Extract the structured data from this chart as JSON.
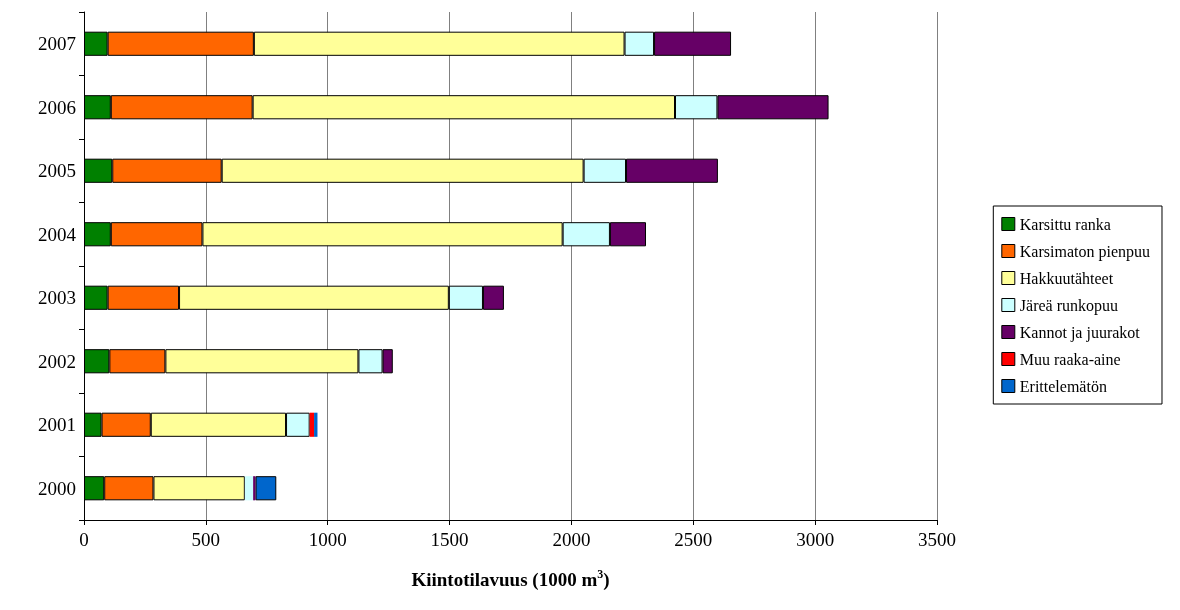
{
  "chart_data": {
    "type": "bar",
    "orientation": "horizontal",
    "stacked": true,
    "xlabel": "Kiintotilavuus (1000 m$^{3}$)",
    "categories": [
      "2007",
      "2006",
      "2005",
      "2004",
      "2003",
      "2002",
      "2001",
      "2000"
    ],
    "xlim": [
      0,
      3500
    ],
    "xticks": [
      0,
      500,
      1000,
      1500,
      2000,
      2500,
      3000,
      3500
    ],
    "grid": "x",
    "legend": "right",
    "series": [
      {
        "name": "Karsittu ranka",
        "color": "#008000",
        "values": [
          97,
          110,
          116,
          110,
          97,
          104,
          72,
          83
        ]
      },
      {
        "name": "Karsimaton pienpuu",
        "color": "#ff6600",
        "values": [
          600,
          582,
          449,
          376,
          293,
          230,
          202,
          202
        ]
      },
      {
        "name": "Hakkuutähteet",
        "color": "#ffff99",
        "values": [
          1521,
          1733,
          1485,
          1478,
          1107,
          792,
          555,
          375
        ]
      },
      {
        "name": "Järeä runkopuu",
        "color": "#ccffff",
        "values": [
          121,
          174,
          174,
          194,
          140,
          99,
          97,
          34
        ]
      },
      {
        "name": "Kannot ja juurakot",
        "color": "#660066",
        "values": [
          316,
          456,
          377,
          148,
          86,
          42,
          null,
          10
        ]
      },
      {
        "name": "Muu raaka-aine",
        "color": "#ff0000",
        "values": [
          null,
          null,
          null,
          null,
          null,
          null,
          18,
          null
        ]
      },
      {
        "name": "Erittelemätön",
        "color": "#0066cc",
        "values": [
          null,
          null,
          null,
          null,
          null,
          null,
          14,
          85
        ]
      }
    ]
  }
}
